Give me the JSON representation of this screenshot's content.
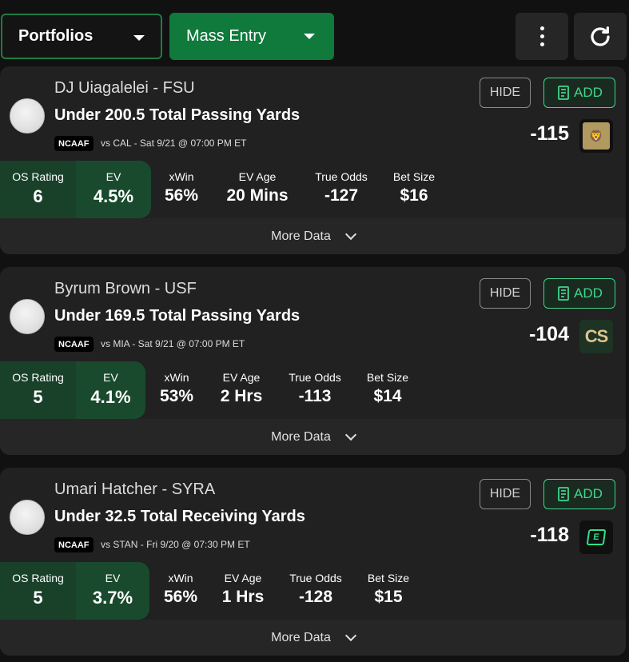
{
  "topbar": {
    "portfolios_label": "Portfolios",
    "mass_entry_label": "Mass Entry"
  },
  "bets": [
    {
      "player": "DJ Uiagalelei - FSU",
      "market": "Under 200.5 Total Passing Yards",
      "league": "NCAAF",
      "game": "vs CAL - Sat 9/21 @ 07:00 PM ET",
      "odds": "-115",
      "book_icon": "betmgm-lion-icon",
      "hide_label": "HIDE",
      "add_label": "ADD",
      "os_rating_label": "OS Rating",
      "os_rating": "6",
      "ev_label": "EV",
      "ev": "4.5%",
      "xwin_label": "xWin",
      "xwin": "56%",
      "ev_age_label": "EV Age",
      "ev_age": "20 Mins",
      "true_odds_label": "True Odds",
      "true_odds": "-127",
      "bet_size_label": "Bet Size",
      "bet_size": "$16",
      "more_label": "More Data"
    },
    {
      "player": "Byrum Brown - USF",
      "market": "Under 169.5 Total Passing Yards",
      "league": "NCAAF",
      "game": "vs MIA - Sat 9/21 @ 07:00 PM ET",
      "odds": "-104",
      "book_icon": "caesars-cs-icon",
      "book_text": "CS",
      "hide_label": "HIDE",
      "add_label": "ADD",
      "os_rating_label": "OS Rating",
      "os_rating": "5",
      "ev_label": "EV",
      "ev": "4.1%",
      "xwin_label": "xWin",
      "xwin": "53%",
      "ev_age_label": "EV Age",
      "ev_age": "2 Hrs",
      "true_odds_label": "True Odds",
      "true_odds": "-113",
      "bet_size_label": "Bet Size",
      "bet_size": "$14",
      "more_label": "More Data"
    },
    {
      "player": "Umari Hatcher - SYRA",
      "market": "Under 32.5 Total Receiving Yards",
      "league": "NCAAF",
      "game": "vs STAN - Fri 9/20 @ 07:30 PM ET",
      "odds": "-118",
      "book_icon": "espnbet-e-icon",
      "hide_label": "HIDE",
      "add_label": "ADD",
      "os_rating_label": "OS Rating",
      "os_rating": "5",
      "ev_label": "EV",
      "ev": "3.7%",
      "xwin_label": "xWin",
      "xwin": "56%",
      "ev_age_label": "EV Age",
      "ev_age": "1 Hrs",
      "true_odds_label": "True Odds",
      "true_odds": "-128",
      "bet_size_label": "Bet Size",
      "bet_size": "$15",
      "more_label": "More Data"
    }
  ],
  "colors": {
    "accent_green": "#0f7a3c",
    "add_green": "#3fd68a",
    "card_bg": "#212121",
    "page_bg": "#111111"
  }
}
